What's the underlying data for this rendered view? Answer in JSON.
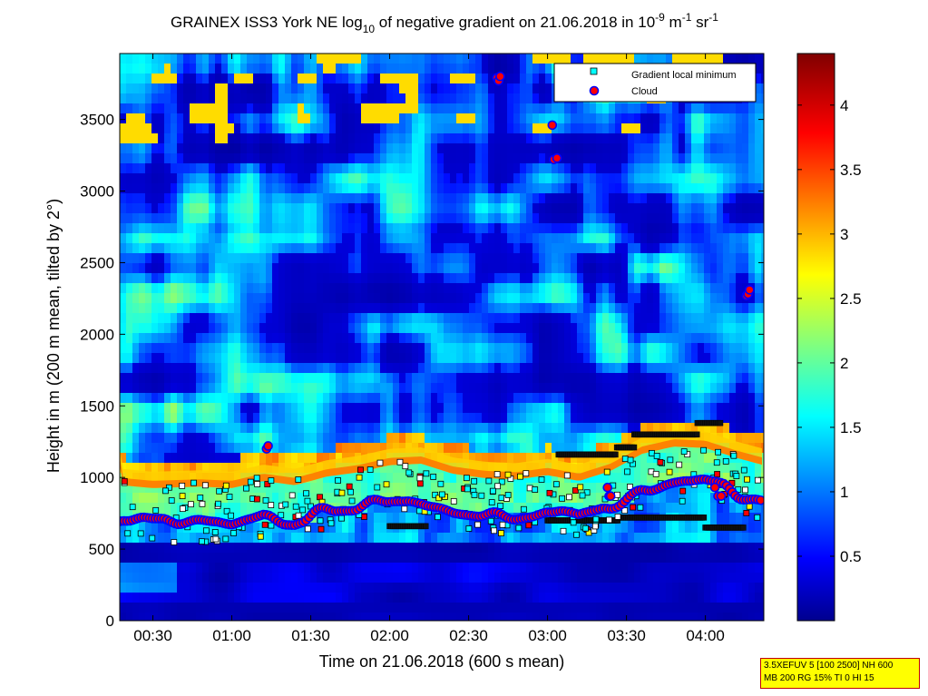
{
  "chart_data": {
    "type": "heatmap",
    "title": {
      "part1": "GRAINEX ISS3 York NE log",
      "sub": "10",
      "part2": " of negative gradient on 21.06.2018 in 10",
      "sup1": "-9",
      "part3": " m",
      "sup2": "-1",
      "part4": " sr",
      "sup3": "-1"
    },
    "xlabel": "Time on 21.06.2018 (600 s mean)",
    "ylabel": "Height in m (200 m mean, tilted by 2°)",
    "x_ticks": [
      "00:30",
      "01:00",
      "01:30",
      "02:00",
      "02:30",
      "03:00",
      "03:30",
      "04:00"
    ],
    "x_tick_hours": [
      0.5,
      1.0,
      1.5,
      2.0,
      2.5,
      3.0,
      3.5,
      4.0
    ],
    "xlim_hours": [
      0.29,
      4.37
    ],
    "y_ticks": [
      0,
      500,
      1000,
      1500,
      2000,
      2500,
      3000,
      3500
    ],
    "ylim": [
      0,
      3960
    ],
    "colorbar": {
      "ticks": [
        0.5,
        1,
        1.5,
        2,
        2.5,
        3,
        3.5,
        4
      ],
      "tick_labels": [
        "0.5",
        "1",
        "1.5",
        "2",
        "2.5",
        "3",
        "3.5",
        "4"
      ],
      "range": [
        0,
        4.4
      ],
      "colormap": "jet"
    },
    "legend": {
      "position": "top-right",
      "entries": [
        {
          "label": "Gradient local minimum",
          "marker": "square",
          "color": "#00ffff"
        },
        {
          "label": "Cloud",
          "marker": "circle",
          "color": "#ff0000"
        }
      ]
    },
    "boundary_layer_top_m": [
      [
        0.3,
        1060
      ],
      [
        0.5,
        1040
      ],
      [
        0.8,
        1050
      ],
      [
        1.0,
        1040
      ],
      [
        1.2,
        1090
      ],
      [
        1.4,
        1060
      ],
      [
        1.6,
        1120
      ],
      [
        1.8,
        1150
      ],
      [
        2.0,
        1200
      ],
      [
        2.2,
        1210
      ],
      [
        2.4,
        1140
      ],
      [
        2.6,
        1110
      ],
      [
        2.8,
        1100
      ],
      [
        3.0,
        1130
      ],
      [
        3.2,
        1090
      ],
      [
        3.4,
        1160
      ],
      [
        3.6,
        1280
      ],
      [
        3.8,
        1330
      ],
      [
        4.0,
        1320
      ],
      [
        4.2,
        1250
      ],
      [
        4.37,
        1200
      ]
    ],
    "elevated_layers": [
      {
        "x_start": 3.07,
        "x_end": 3.44,
        "height_m": 1160
      },
      {
        "x_start": 3.44,
        "x_end": 3.55,
        "height_m": 1210
      },
      {
        "x_start": 3.55,
        "x_end": 3.95,
        "height_m": 1300
      },
      {
        "x_start": 3.95,
        "x_end": 4.1,
        "height_m": 1380
      },
      {
        "x_start": 2.0,
        "x_end": 2.23,
        "height_m": 660
      },
      {
        "x_start": 3.0,
        "x_end": 3.45,
        "height_m": 700
      },
      {
        "x_start": 3.45,
        "x_end": 4.0,
        "height_m": 720
      },
      {
        "x_start": 4.0,
        "x_end": 4.25,
        "height_m": 650
      }
    ],
    "cloud_points_m": [
      [
        2.68,
        3790
      ],
      [
        2.69,
        3770
      ],
      [
        2.7,
        3800
      ],
      [
        3.03,
        3460
      ],
      [
        3.04,
        3220
      ],
      [
        3.06,
        3230
      ],
      [
        4.26,
        2270
      ],
      [
        4.27,
        2280
      ],
      [
        4.28,
        2310
      ],
      [
        1.22,
        1200
      ],
      [
        1.23,
        1220
      ],
      [
        3.38,
        930
      ],
      [
        3.39,
        870
      ],
      [
        3.4,
        870
      ],
      [
        4.06,
        930
      ],
      [
        4.08,
        870
      ],
      [
        4.1,
        870
      ]
    ]
  },
  "infobox": {
    "line1": "3.5XEFUV 5 [100 2500] NH 600",
    "line2": "MB 200 RG 15% TI 0 HI 15"
  }
}
